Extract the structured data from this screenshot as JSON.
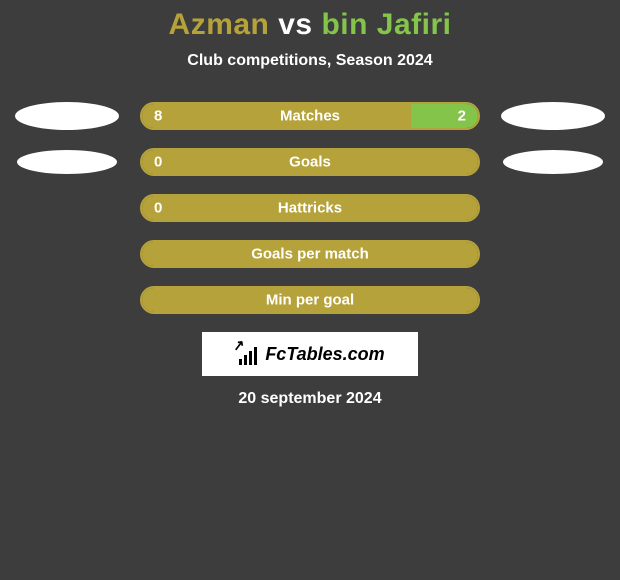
{
  "title": {
    "player1": "Azman",
    "vs": " vs ",
    "player2": "bin Jafiri",
    "player1_color": "#b6a23a",
    "vs_color": "#ffffff",
    "player2_color": "#84c44a"
  },
  "subtitle": "Club competitions, Season 2024",
  "background_color": "#3d3d3d",
  "bars": [
    {
      "label": "Matches",
      "left_val": "8",
      "right_val": "2",
      "left_pct": 80,
      "right_pct": 20,
      "left_color": "#b6a23a",
      "right_color": "#84c44a",
      "border_color": "#b6a23a",
      "show_left_avatar": true,
      "show_right_avatar": true,
      "avatar_size": "large"
    },
    {
      "label": "Goals",
      "left_val": "0",
      "right_val": "",
      "left_pct": 100,
      "right_pct": 0,
      "left_color": "#b6a23a",
      "right_color": "#84c44a",
      "border_color": "#b6a23a",
      "show_left_avatar": true,
      "show_right_avatar": true,
      "avatar_size": "small"
    },
    {
      "label": "Hattricks",
      "left_val": "0",
      "right_val": "",
      "left_pct": 100,
      "right_pct": 0,
      "left_color": "#b6a23a",
      "right_color": "#84c44a",
      "border_color": "#b6a23a",
      "show_left_avatar": false,
      "show_right_avatar": false
    },
    {
      "label": "Goals per match",
      "left_val": "",
      "right_val": "",
      "left_pct": 100,
      "right_pct": 0,
      "left_color": "#b6a23a",
      "right_color": "#84c44a",
      "border_color": "#b6a23a",
      "show_left_avatar": false,
      "show_right_avatar": false
    },
    {
      "label": "Min per goal",
      "left_val": "",
      "right_val": "",
      "left_pct": 100,
      "right_pct": 0,
      "left_color": "#b6a23a",
      "right_color": "#84c44a",
      "border_color": "#b6a23a",
      "show_left_avatar": false,
      "show_right_avatar": false
    }
  ],
  "logo_text": "FcTables.com",
  "date": "20 september 2024"
}
